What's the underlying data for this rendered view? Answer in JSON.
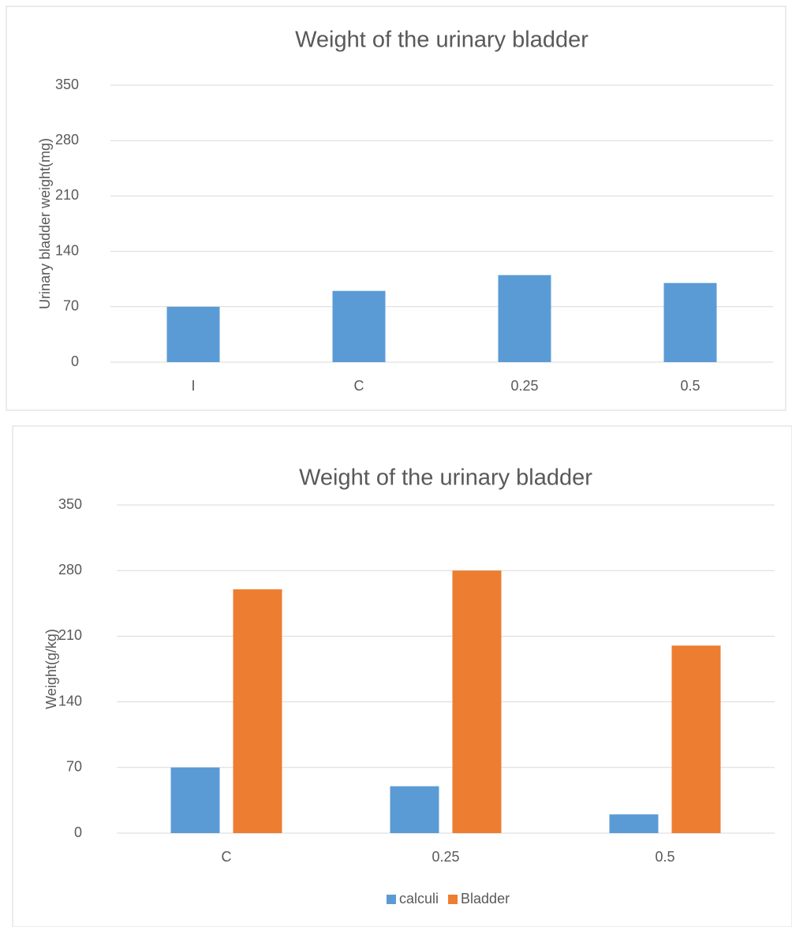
{
  "chart_data": [
    {
      "type": "bar",
      "title": "Weight of the urinary bladder",
      "y_label": "Urinary bladder weight(mg)",
      "categories": [
        "I",
        "C",
        "0.25",
        "0.5"
      ],
      "values": [
        70,
        90,
        110,
        100
      ],
      "color": "#5b9bd5",
      "ylim": [
        0,
        350
      ],
      "yticks": [
        0,
        70,
        140,
        210,
        280,
        350
      ],
      "grid": true
    },
    {
      "type": "grouped_bar",
      "title": "Weight of the urinary bladder",
      "y_label": "Weight(g/kg)",
      "categories": [
        "C",
        "0.25",
        "0.5"
      ],
      "series": [
        {
          "name": "calculi",
          "color": "#5b9bd5",
          "values": [
            70,
            50,
            20
          ]
        },
        {
          "name": "Bladder",
          "color": "#ed7d31",
          "values": [
            260,
            280,
            200
          ]
        }
      ],
      "ylim": [
        0,
        350
      ],
      "yticks": [
        0,
        70,
        140,
        210,
        280,
        350
      ],
      "grid": true,
      "legend": "bottom"
    }
  ]
}
